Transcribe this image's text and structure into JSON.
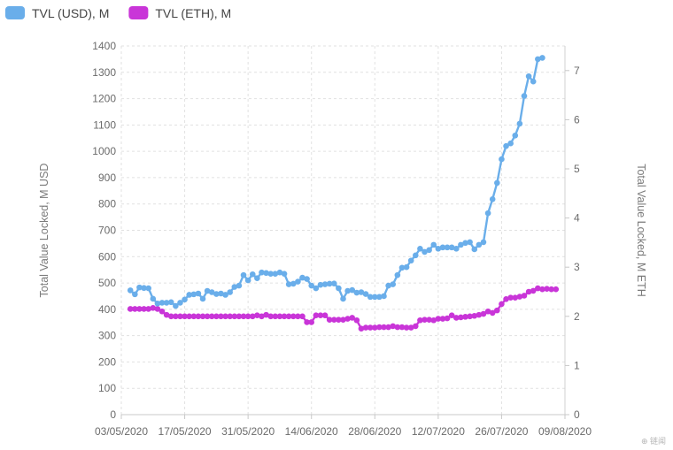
{
  "chart_data": {
    "type": "line",
    "legend": {
      "position": "top-left"
    },
    "grid": true,
    "x_axis": {
      "type": "date",
      "range": [
        "2020-05-03",
        "2020-08-09"
      ],
      "tick_labels": [
        "03/05/2020",
        "17/05/2020",
        "31/05/2020",
        "14/06/2020",
        "28/06/2020",
        "12/07/2020",
        "26/07/2020",
        "09/08/2020"
      ],
      "tick_dates": [
        "2020-05-03",
        "2020-05-17",
        "2020-05-31",
        "2020-06-14",
        "2020-06-28",
        "2020-07-12",
        "2020-07-26",
        "2020-08-09"
      ]
    },
    "y_axis_left": {
      "label": "Total Value Locked, M USD",
      "range": [
        0,
        1400
      ],
      "ticks": [
        0,
        100,
        200,
        300,
        400,
        500,
        600,
        700,
        800,
        900,
        1000,
        1100,
        1200,
        1300,
        1400
      ]
    },
    "y_axis_right": {
      "label": "Total Value Locked, M ETH",
      "range": [
        0,
        7.5
      ],
      "ticks": [
        0,
        1,
        2,
        3,
        4,
        5,
        6,
        7
      ]
    },
    "series": [
      {
        "name": "TVL (ETH), M",
        "axis": "right",
        "color": "#c935d8",
        "points": [
          [
            "2020-05-05",
            2.15
          ],
          [
            "2020-05-06",
            2.15
          ],
          [
            "2020-05-07",
            2.15
          ],
          [
            "2020-05-08",
            2.15
          ],
          [
            "2020-05-09",
            2.15
          ],
          [
            "2020-05-10",
            2.17
          ],
          [
            "2020-05-11",
            2.15
          ],
          [
            "2020-05-12",
            2.1
          ],
          [
            "2020-05-13",
            2.03
          ],
          [
            "2020-05-14",
            2.0
          ],
          [
            "2020-05-15",
            2.0
          ],
          [
            "2020-05-16",
            2.0
          ],
          [
            "2020-05-17",
            2.0
          ],
          [
            "2020-05-18",
            2.0
          ],
          [
            "2020-05-19",
            2.0
          ],
          [
            "2020-05-20",
            2.0
          ],
          [
            "2020-05-21",
            2.0
          ],
          [
            "2020-05-22",
            2.0
          ],
          [
            "2020-05-23",
            2.0
          ],
          [
            "2020-05-24",
            2.0
          ],
          [
            "2020-05-25",
            2.0
          ],
          [
            "2020-05-26",
            2.0
          ],
          [
            "2020-05-27",
            2.0
          ],
          [
            "2020-05-28",
            2.0
          ],
          [
            "2020-05-29",
            2.0
          ],
          [
            "2020-05-30",
            2.0
          ],
          [
            "2020-05-31",
            2.0
          ],
          [
            "2020-06-01",
            2.0
          ],
          [
            "2020-06-02",
            2.02
          ],
          [
            "2020-06-03",
            2.0
          ],
          [
            "2020-06-04",
            2.03
          ],
          [
            "2020-06-05",
            2.0
          ],
          [
            "2020-06-06",
            2.0
          ],
          [
            "2020-06-07",
            2.0
          ],
          [
            "2020-06-08",
            2.0
          ],
          [
            "2020-06-09",
            2.0
          ],
          [
            "2020-06-10",
            2.0
          ],
          [
            "2020-06-11",
            2.0
          ],
          [
            "2020-06-12",
            2.0
          ],
          [
            "2020-06-13",
            1.88
          ],
          [
            "2020-06-14",
            1.88
          ],
          [
            "2020-06-15",
            2.02
          ],
          [
            "2020-06-16",
            2.02
          ],
          [
            "2020-06-17",
            2.02
          ],
          [
            "2020-06-18",
            1.93
          ],
          [
            "2020-06-19",
            1.93
          ],
          [
            "2020-06-20",
            1.93
          ],
          [
            "2020-06-21",
            1.93
          ],
          [
            "2020-06-22",
            1.95
          ],
          [
            "2020-06-23",
            1.97
          ],
          [
            "2020-06-24",
            1.92
          ],
          [
            "2020-06-25",
            1.75
          ],
          [
            "2020-06-26",
            1.77
          ],
          [
            "2020-06-27",
            1.77
          ],
          [
            "2020-06-28",
            1.77
          ],
          [
            "2020-06-29",
            1.78
          ],
          [
            "2020-06-30",
            1.78
          ],
          [
            "2020-07-01",
            1.78
          ],
          [
            "2020-07-02",
            1.8
          ],
          [
            "2020-07-03",
            1.78
          ],
          [
            "2020-07-04",
            1.78
          ],
          [
            "2020-07-05",
            1.77
          ],
          [
            "2020-07-06",
            1.77
          ],
          [
            "2020-07-07",
            1.8
          ],
          [
            "2020-07-08",
            1.92
          ],
          [
            "2020-07-09",
            1.93
          ],
          [
            "2020-07-10",
            1.93
          ],
          [
            "2020-07-11",
            1.92
          ],
          [
            "2020-07-12",
            1.95
          ],
          [
            "2020-07-13",
            1.95
          ],
          [
            "2020-07-14",
            1.96
          ],
          [
            "2020-07-15",
            2.02
          ],
          [
            "2020-07-16",
            1.97
          ],
          [
            "2020-07-17",
            1.98
          ],
          [
            "2020-07-18",
            1.99
          ],
          [
            "2020-07-19",
            2.0
          ],
          [
            "2020-07-20",
            2.01
          ],
          [
            "2020-07-21",
            2.03
          ],
          [
            "2020-07-22",
            2.05
          ],
          [
            "2020-07-23",
            2.1
          ],
          [
            "2020-07-24",
            2.07
          ],
          [
            "2020-07-25",
            2.12
          ],
          [
            "2020-07-26",
            2.25
          ],
          [
            "2020-07-27",
            2.35
          ],
          [
            "2020-07-28",
            2.38
          ],
          [
            "2020-07-29",
            2.38
          ],
          [
            "2020-07-30",
            2.4
          ],
          [
            "2020-07-31",
            2.42
          ],
          [
            "2020-08-01",
            2.5
          ],
          [
            "2020-08-02",
            2.52
          ],
          [
            "2020-08-03",
            2.57
          ],
          [
            "2020-08-04",
            2.55
          ],
          [
            "2020-08-05",
            2.56
          ],
          [
            "2020-08-06",
            2.55
          ],
          [
            "2020-08-07",
            2.55
          ]
        ]
      },
      {
        "name": "TVL (USD), M",
        "axis": "left",
        "color": "#6aaeea",
        "points": [
          [
            "2020-05-05",
            472
          ],
          [
            "2020-05-06",
            457
          ],
          [
            "2020-05-07",
            483
          ],
          [
            "2020-05-08",
            481
          ],
          [
            "2020-05-09",
            480
          ],
          [
            "2020-05-10",
            440
          ],
          [
            "2020-05-11",
            422
          ],
          [
            "2020-05-12",
            425
          ],
          [
            "2020-05-13",
            425
          ],
          [
            "2020-05-14",
            427
          ],
          [
            "2020-05-15",
            413
          ],
          [
            "2020-05-16",
            425
          ],
          [
            "2020-05-17",
            437
          ],
          [
            "2020-05-18",
            455
          ],
          [
            "2020-05-19",
            457
          ],
          [
            "2020-05-20",
            460
          ],
          [
            "2020-05-21",
            440
          ],
          [
            "2020-05-22",
            470
          ],
          [
            "2020-05-23",
            465
          ],
          [
            "2020-05-24",
            458
          ],
          [
            "2020-05-25",
            460
          ],
          [
            "2020-05-26",
            455
          ],
          [
            "2020-05-27",
            465
          ],
          [
            "2020-05-28",
            485
          ],
          [
            "2020-05-29",
            490
          ],
          [
            "2020-05-30",
            530
          ],
          [
            "2020-05-31",
            510
          ],
          [
            "2020-06-01",
            533
          ],
          [
            "2020-06-02",
            518
          ],
          [
            "2020-06-03",
            540
          ],
          [
            "2020-06-04",
            538
          ],
          [
            "2020-06-05",
            535
          ],
          [
            "2020-06-06",
            535
          ],
          [
            "2020-06-07",
            540
          ],
          [
            "2020-06-08",
            535
          ],
          [
            "2020-06-09",
            495
          ],
          [
            "2020-06-10",
            497
          ],
          [
            "2020-06-11",
            505
          ],
          [
            "2020-06-12",
            520
          ],
          [
            "2020-06-13",
            515
          ],
          [
            "2020-06-14",
            490
          ],
          [
            "2020-06-15",
            480
          ],
          [
            "2020-06-16",
            493
          ],
          [
            "2020-06-17",
            495
          ],
          [
            "2020-06-18",
            497
          ],
          [
            "2020-06-19",
            498
          ],
          [
            "2020-06-20",
            480
          ],
          [
            "2020-06-21",
            440
          ],
          [
            "2020-06-22",
            470
          ],
          [
            "2020-06-23",
            473
          ],
          [
            "2020-06-24",
            463
          ],
          [
            "2020-06-25",
            465
          ],
          [
            "2020-06-26",
            458
          ],
          [
            "2020-06-27",
            447
          ],
          [
            "2020-06-28",
            447
          ],
          [
            "2020-06-29",
            447
          ],
          [
            "2020-06-30",
            450
          ],
          [
            "2020-07-01",
            490
          ],
          [
            "2020-07-02",
            495
          ],
          [
            "2020-07-03",
            530
          ],
          [
            "2020-07-04",
            558
          ],
          [
            "2020-07-05",
            560
          ],
          [
            "2020-07-06",
            585
          ],
          [
            "2020-07-07",
            605
          ],
          [
            "2020-07-08",
            630
          ],
          [
            "2020-07-09",
            618
          ],
          [
            "2020-07-10",
            625
          ],
          [
            "2020-07-11",
            645
          ],
          [
            "2020-07-12",
            630
          ],
          [
            "2020-07-13",
            635
          ],
          [
            "2020-07-14",
            635
          ],
          [
            "2020-07-15",
            635
          ],
          [
            "2020-07-16",
            630
          ],
          [
            "2020-07-17",
            645
          ],
          [
            "2020-07-18",
            652
          ],
          [
            "2020-07-19",
            655
          ],
          [
            "2020-07-20",
            628
          ],
          [
            "2020-07-21",
            645
          ],
          [
            "2020-07-22",
            655
          ],
          [
            "2020-07-23",
            765
          ],
          [
            "2020-07-24",
            818
          ],
          [
            "2020-07-25",
            880
          ],
          [
            "2020-07-26",
            970
          ],
          [
            "2020-07-27",
            1020
          ],
          [
            "2020-07-28",
            1030
          ],
          [
            "2020-07-29",
            1060
          ],
          [
            "2020-07-30",
            1105
          ],
          [
            "2020-07-31",
            1210
          ],
          [
            "2020-08-01",
            1285
          ],
          [
            "2020-08-02",
            1265
          ],
          [
            "2020-08-03",
            1350
          ],
          [
            "2020-08-04",
            1355
          ]
        ]
      }
    ],
    "watermark": "⊕ 链闻"
  }
}
